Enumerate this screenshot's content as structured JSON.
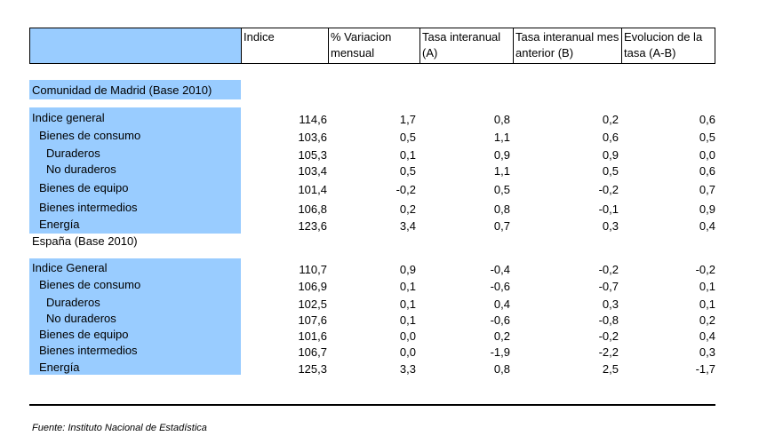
{
  "headers": [
    "",
    "Indice",
    "% Variacion mensual",
    "Tasa interanual (A)",
    "Tasa interanual mes anterior (B)",
    "Evolucion de la tasa (A-B)"
  ],
  "sections": [
    {
      "title": "Comunidad de Madrid (Base 2010)",
      "rows": [
        {
          "label": "Indice general",
          "indent": 0,
          "values": [
            "114,6",
            "1,7",
            "0,8",
            "0,2",
            "0,6"
          ]
        },
        {
          "label": "Bienes de consumo",
          "indent": 1,
          "values": [
            "103,6",
            "0,5",
            "1,1",
            "0,6",
            "0,5"
          ]
        },
        {
          "label": "Duraderos",
          "indent": 2,
          "values": [
            "105,3",
            "0,1",
            "0,9",
            "0,9",
            "0,0"
          ]
        },
        {
          "label": "No duraderos",
          "indent": 2,
          "values": [
            "103,4",
            "0,5",
            "1,1",
            "0,5",
            "0,6"
          ]
        },
        {
          "label": "Bienes de equipo",
          "indent": 1,
          "values": [
            "101,4",
            "-0,2",
            "0,5",
            "-0,2",
            "0,7"
          ]
        },
        {
          "label": "Bienes intermedios",
          "indent": 1,
          "values": [
            "106,8",
            "0,2",
            "0,8",
            "-0,1",
            "0,9"
          ]
        },
        {
          "label": "Energía",
          "indent": 1,
          "values": [
            "123,6",
            "3,4",
            "0,7",
            "0,3",
            "0,4"
          ]
        }
      ]
    },
    {
      "title": "España (Base 2010)",
      "rows": [
        {
          "label": "Indice General",
          "indent": 0,
          "values": [
            "110,7",
            "0,9",
            "-0,4",
            "-0,2",
            "-0,2"
          ]
        },
        {
          "label": "Bienes de consumo",
          "indent": 1,
          "values": [
            "106,9",
            "0,1",
            "-0,6",
            "-0,7",
            "0,1"
          ]
        },
        {
          "label": "Duraderos",
          "indent": 2,
          "values": [
            "102,5",
            "0,1",
            "0,4",
            "0,3",
            "0,1"
          ]
        },
        {
          "label": "No duraderos",
          "indent": 2,
          "values": [
            "107,6",
            "0,1",
            "-0,6",
            "-0,8",
            "0,2"
          ]
        },
        {
          "label": "Bienes de equipo",
          "indent": 1,
          "values": [
            "101,6",
            "0,0",
            "0,2",
            "-0,2",
            "0,4"
          ]
        },
        {
          "label": "Bienes intermedios",
          "indent": 1,
          "values": [
            "106,7",
            "0,0",
            "-1,9",
            "-2,2",
            "0,3"
          ]
        },
        {
          "label": "Energía",
          "indent": 1,
          "values": [
            "125,3",
            "3,3",
            "0,8",
            "2,5",
            "-1,7"
          ]
        }
      ]
    }
  ],
  "source": "Fuente: Instituto Nacional de Estadística",
  "colors": {
    "label_column": "#99ccff",
    "rules": "#000000"
  }
}
